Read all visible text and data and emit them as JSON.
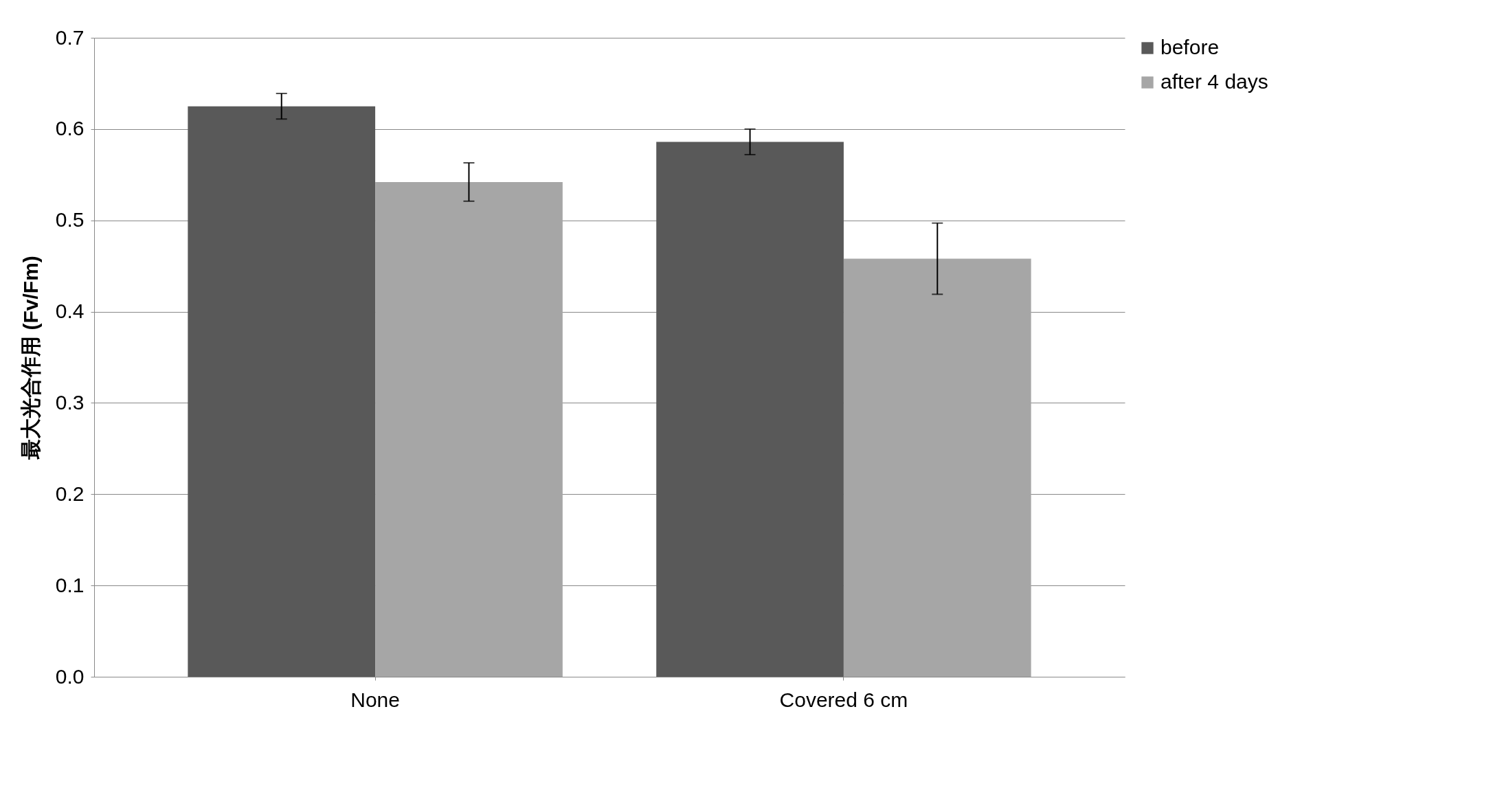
{
  "chart_data": {
    "type": "bar",
    "ylabel": "最大光合作用 (Fv/Fm)",
    "categories": [
      "None",
      "Covered 6 cm"
    ],
    "series": [
      {
        "name": "before",
        "color": "#595959",
        "values": [
          0.625,
          0.586
        ],
        "errors": [
          0.014,
          0.014
        ]
      },
      {
        "name": "after 4 days",
        "color": "#a6a6a6",
        "values": [
          0.542,
          0.458
        ],
        "errors": [
          0.021,
          0.039
        ]
      }
    ],
    "ylim": [
      0,
      0.7
    ],
    "yticks": [
      {
        "value": 0,
        "label": "0.0"
      },
      {
        "value": 0.1,
        "label": "0.1"
      },
      {
        "value": 0.2,
        "label": "0.2"
      },
      {
        "value": 0.3,
        "label": "0.3"
      },
      {
        "value": 0.4,
        "label": "0.4"
      },
      {
        "value": 0.5,
        "label": "0.5"
      },
      {
        "value": 0.6,
        "label": "0.6"
      },
      {
        "value": 0.7,
        "label": "0.7"
      }
    ],
    "grid": "y",
    "legend": "right"
  }
}
